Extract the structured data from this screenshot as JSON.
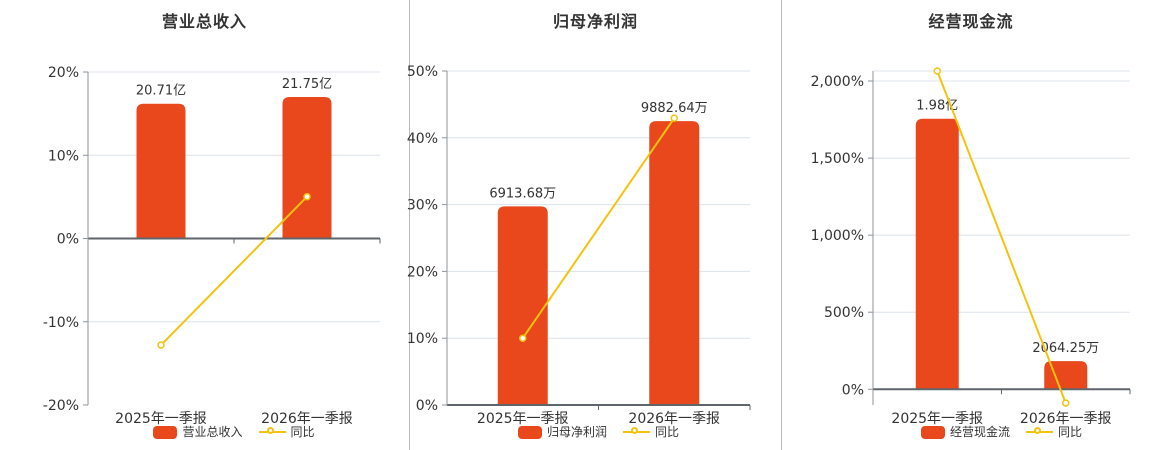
{
  "colors": {
    "bar": "#e8481c",
    "line": "#f3c30f",
    "grid": "#dce3eb",
    "axis": "#5f656b",
    "axis_secondary": "#8f959b",
    "text": "#333333",
    "divider": "#b7bcc2",
    "background": "#ffffff"
  },
  "chart_data": [
    {
      "type": "bar",
      "title": "营业总收入",
      "categories": [
        "2025年一季报",
        "2026年一季报"
      ],
      "series": [
        {
          "type": "bar",
          "name": "营业总收入",
          "unit": "亿",
          "values": [
            20.71,
            21.75
          ],
          "labels": [
            "20.71亿",
            "21.75亿"
          ]
        },
        {
          "type": "line",
          "name": "同比",
          "unit": "%",
          "values": [
            -12.8,
            5.02
          ]
        }
      ],
      "y_axis": {
        "unit": "%",
        "range": [
          -20,
          20
        ],
        "ticks": [
          {
            "value": 20,
            "label": "20%"
          },
          {
            "value": 10,
            "label": "10%"
          },
          {
            "value": 0,
            "label": "0%"
          },
          {
            "value": -10,
            "label": "-10%"
          },
          {
            "value": -20,
            "label": "-20%"
          }
        ]
      },
      "legend_position": "bottom",
      "grid": true
    },
    {
      "type": "bar",
      "title": "归母净利润",
      "categories": [
        "2025年一季报",
        "2026年一季报"
      ],
      "series": [
        {
          "type": "bar",
          "name": "归母净利润",
          "unit": "万",
          "values": [
            6913.68,
            9882.64
          ],
          "labels": [
            "6913.68万",
            "9882.64万"
          ]
        },
        {
          "type": "line",
          "name": "同比",
          "unit": "%",
          "values": [
            10.0,
            42.94
          ]
        }
      ],
      "y_axis": {
        "unit": "%",
        "range": [
          0,
          50
        ],
        "ticks": [
          {
            "value": 50,
            "label": "50%"
          },
          {
            "value": 40,
            "label": "40%"
          },
          {
            "value": 30,
            "label": "30%"
          },
          {
            "value": 20,
            "label": "20%"
          },
          {
            "value": 10,
            "label": "10%"
          },
          {
            "value": 0,
            "label": "0%"
          }
        ]
      },
      "legend_position": "bottom",
      "grid": true
    },
    {
      "type": "bar",
      "title": "经营现金流",
      "categories": [
        "2025年一季报",
        "2026年一季报"
      ],
      "series": [
        {
          "type": "bar",
          "name": "经营现金流",
          "unit": "万",
          "values": [
            19800,
            2064.25
          ],
          "labels": [
            "1.98亿",
            "2064.25万"
          ]
        },
        {
          "type": "line",
          "name": "同比",
          "unit": "%",
          "values": [
            2065,
            -89.57
          ]
        }
      ],
      "y_axis": {
        "unit": "%",
        "range": [
          -102,
          2065
        ],
        "ticks": [
          {
            "value": 2065,
            "label": ""
          },
          {
            "value": 2000,
            "label": "2,000%"
          },
          {
            "value": 1500,
            "label": "1,500%"
          },
          {
            "value": 1000,
            "label": "1,000%"
          },
          {
            "value": 500,
            "label": "500%"
          },
          {
            "value": 0,
            "label": "0%"
          }
        ]
      },
      "legend_position": "bottom",
      "grid": true
    }
  ]
}
